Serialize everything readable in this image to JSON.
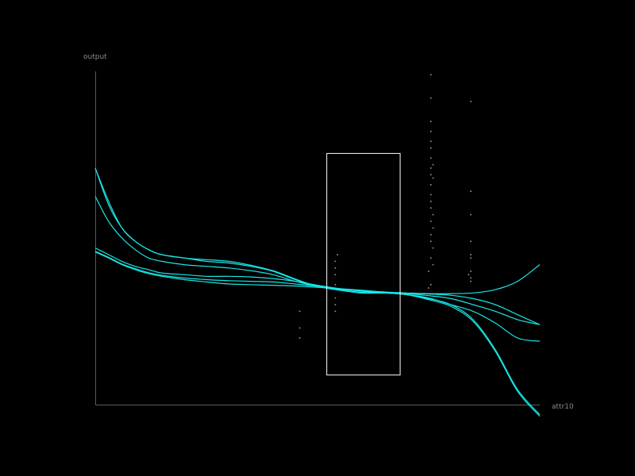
{
  "chart_data": {
    "type": "line",
    "xlabel": "attr10",
    "ylabel": "output",
    "xlim": [
      0,
      1
    ],
    "ylim": [
      0,
      1
    ],
    "grid": false,
    "legend": "none",
    "colors": {
      "curve": "#18e6e6",
      "points": "#9a9a9a",
      "axis": "#5a5a5a",
      "selection": "#ffffff"
    },
    "series": [
      {
        "x": [
          0,
          0.03,
          0.06,
          0.09,
          0.12,
          0.15,
          0.2,
          0.25,
          0.3,
          0.35,
          0.4,
          0.45,
          0.5,
          0.55,
          0.6,
          0.65,
          0.7,
          0.75,
          0.8,
          0.85,
          0.9,
          0.95,
          1.0
        ],
        "values": [
          0.71,
          0.6,
          0.53,
          0.49,
          0.465,
          0.45,
          0.44,
          0.43,
          0.425,
          0.415,
          0.4,
          0.375,
          0.355,
          0.345,
          0.335,
          0.335,
          0.33,
          0.315,
          0.295,
          0.25,
          0.16,
          0.04,
          -0.035
        ]
      },
      {
        "x": [
          0,
          0.03,
          0.06,
          0.09,
          0.12,
          0.15,
          0.2,
          0.25,
          0.3,
          0.35,
          0.4,
          0.45,
          0.5,
          0.55,
          0.6,
          0.65,
          0.7,
          0.75,
          0.8,
          0.85,
          0.9,
          0.95,
          1.0
        ],
        "values": [
          0.71,
          0.61,
          0.53,
          0.49,
          0.465,
          0.45,
          0.44,
          0.435,
          0.43,
          0.418,
          0.402,
          0.377,
          0.355,
          0.343,
          0.335,
          0.335,
          0.33,
          0.318,
          0.3,
          0.255,
          0.165,
          0.045,
          -0.03
        ]
      },
      {
        "x": [
          0,
          0.03,
          0.06,
          0.09,
          0.12,
          0.15,
          0.2,
          0.25,
          0.3,
          0.35,
          0.4,
          0.45,
          0.5,
          0.55,
          0.6,
          0.65,
          0.7,
          0.75,
          0.8,
          0.85,
          0.9,
          0.95,
          1.0
        ],
        "values": [
          0.625,
          0.55,
          0.5,
          0.465,
          0.44,
          0.43,
          0.42,
          0.415,
          0.41,
          0.402,
          0.39,
          0.37,
          0.355,
          0.345,
          0.337,
          0.335,
          0.33,
          0.32,
          0.3,
          0.28,
          0.245,
          0.2,
          0.19
        ]
      },
      {
        "x": [
          0,
          0.03,
          0.06,
          0.09,
          0.12,
          0.15,
          0.2,
          0.25,
          0.3,
          0.35,
          0.4,
          0.45,
          0.5,
          0.55,
          0.6,
          0.65,
          0.7,
          0.75,
          0.8,
          0.85,
          0.9,
          0.95,
          1.0
        ],
        "values": [
          0.47,
          0.45,
          0.43,
          0.415,
          0.405,
          0.395,
          0.39,
          0.385,
          0.385,
          0.383,
          0.378,
          0.37,
          0.358,
          0.348,
          0.34,
          0.335,
          0.333,
          0.327,
          0.318,
          0.3,
          0.28,
          0.255,
          0.24
        ]
      },
      {
        "x": [
          0,
          0.03,
          0.06,
          0.09,
          0.12,
          0.15,
          0.2,
          0.25,
          0.3,
          0.35,
          0.4,
          0.45,
          0.5,
          0.55,
          0.6,
          0.65,
          0.7,
          0.75,
          0.8,
          0.85,
          0.9,
          0.95,
          1.0
        ],
        "values": [
          0.458,
          0.44,
          0.42,
          0.405,
          0.393,
          0.385,
          0.375,
          0.368,
          0.362,
          0.36,
          0.358,
          0.356,
          0.352,
          0.348,
          0.343,
          0.338,
          0.335,
          0.333,
          0.333,
          0.335,
          0.345,
          0.37,
          0.42
        ]
      },
      {
        "x": [
          0,
          0.03,
          0.06,
          0.09,
          0.12,
          0.15,
          0.2,
          0.25,
          0.3,
          0.35,
          0.4,
          0.45,
          0.5,
          0.55,
          0.6,
          0.65,
          0.7,
          0.75,
          0.8,
          0.85,
          0.9,
          0.95,
          1.0
        ],
        "values": [
          0.46,
          0.442,
          0.422,
          0.408,
          0.396,
          0.388,
          0.38,
          0.375,
          0.372,
          0.37,
          0.368,
          0.362,
          0.355,
          0.347,
          0.341,
          0.336,
          0.334,
          0.332,
          0.328,
          0.318,
          0.3,
          0.27,
          0.24
        ]
      }
    ],
    "points": [
      [
        0.46,
        0.2
      ],
      [
        0.46,
        0.23
      ],
      [
        0.46,
        0.28
      ],
      [
        0.54,
        0.28
      ],
      [
        0.54,
        0.3
      ],
      [
        0.54,
        0.32
      ],
      [
        0.54,
        0.36
      ],
      [
        0.54,
        0.39
      ],
      [
        0.54,
        0.41
      ],
      [
        0.54,
        0.43
      ],
      [
        0.545,
        0.45
      ],
      [
        0.75,
        0.35
      ],
      [
        0.755,
        0.36
      ],
      [
        0.75,
        0.4
      ],
      [
        0.76,
        0.42
      ],
      [
        0.755,
        0.44
      ],
      [
        0.76,
        0.47
      ],
      [
        0.755,
        0.49
      ],
      [
        0.755,
        0.51
      ],
      [
        0.76,
        0.53
      ],
      [
        0.755,
        0.55
      ],
      [
        0.76,
        0.57
      ],
      [
        0.755,
        0.59
      ],
      [
        0.755,
        0.61
      ],
      [
        0.755,
        0.63
      ],
      [
        0.755,
        0.66
      ],
      [
        0.755,
        0.69
      ],
      [
        0.755,
        0.71
      ],
      [
        0.755,
        0.74
      ],
      [
        0.755,
        0.77
      ],
      [
        0.755,
        0.79
      ],
      [
        0.755,
        0.82
      ],
      [
        0.755,
        0.85
      ],
      [
        0.755,
        0.92
      ],
      [
        0.755,
        0.99
      ],
      [
        0.76,
        0.72
      ],
      [
        0.76,
        0.68
      ],
      [
        0.845,
        0.4
      ],
      [
        0.845,
        0.37
      ],
      [
        0.845,
        0.44
      ],
      [
        0.845,
        0.45
      ],
      [
        0.845,
        0.49
      ],
      [
        0.845,
        0.57
      ],
      [
        0.845,
        0.64
      ],
      [
        0.845,
        0.91
      ],
      [
        0.84,
        0.39
      ],
      [
        0.845,
        0.38
      ]
    ],
    "selection": {
      "x": [
        0.52,
        0.685
      ],
      "y": [
        0.09,
        0.755
      ]
    }
  }
}
